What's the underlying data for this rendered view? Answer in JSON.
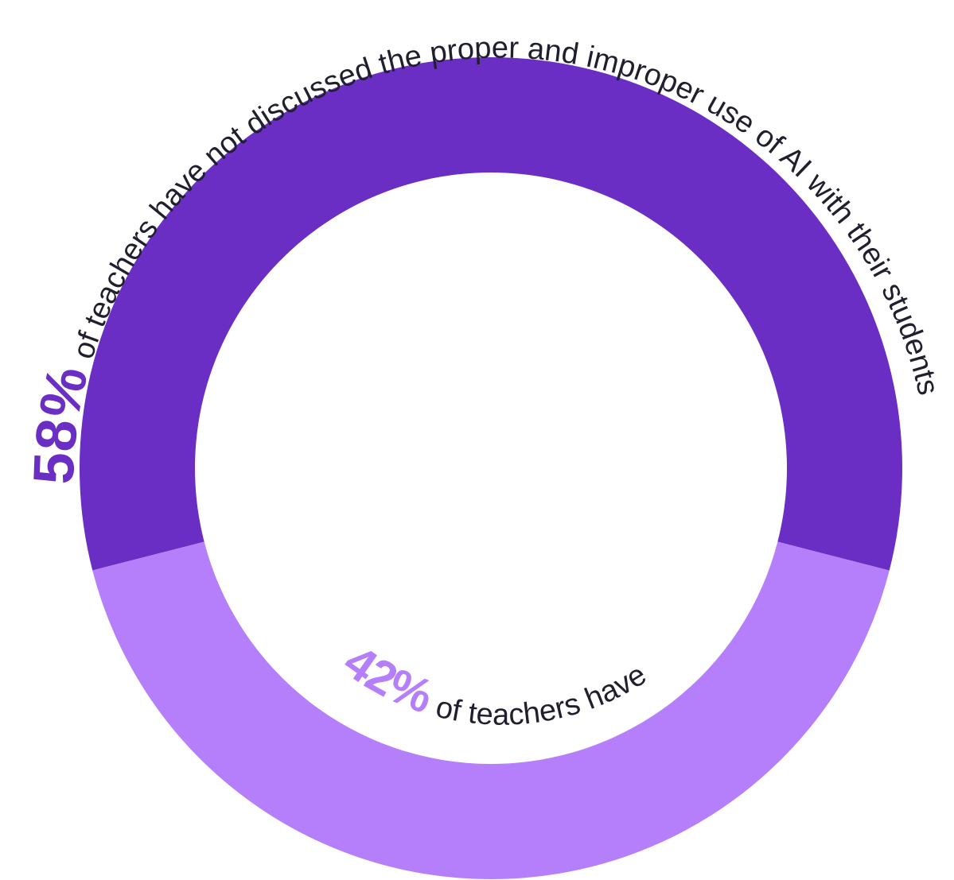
{
  "chart_data": {
    "type": "pie",
    "variant": "donut",
    "slices": [
      {
        "value": 58,
        "percent_label": "58%",
        "label": "of teachers have not discussed the proper and improper use of AI with their students",
        "color": "#6a2ec4"
      },
      {
        "value": 42,
        "percent_label": "42%",
        "label": "of teachers have",
        "color": "#b57ffb"
      }
    ],
    "legend": "none"
  },
  "colors": {
    "text": "#1f1f2e",
    "background": "#ffffff"
  }
}
